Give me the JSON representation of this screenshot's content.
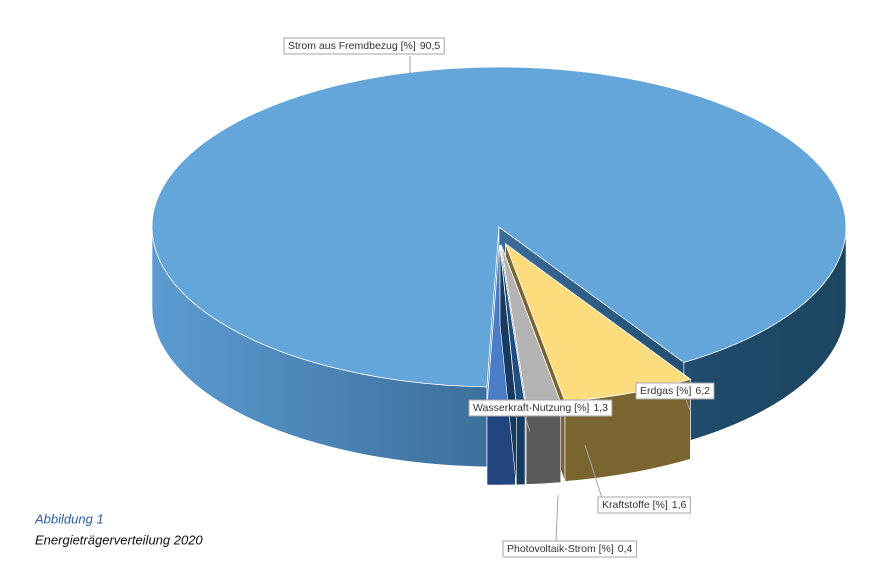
{
  "chart_data": {
    "type": "pie3d",
    "categories": [
      "Strom aus Fremdbezug [%]",
      "Erdgas [%]",
      "Kraftstoffe [%]",
      "Photovoltaik-Strom [%]",
      "Wasserkraft-Nutzung [%]"
    ],
    "values": [
      90.5,
      6.2,
      1.6,
      0.4,
      1.3
    ],
    "value_labels": [
      "90,5",
      "6,2",
      "1,6",
      "0,4",
      "1,3"
    ],
    "colors": [
      "#64a6d9",
      "#fddc7d",
      "#b3b3b3",
      "#1f4f80",
      "#4a7cc7"
    ],
    "caption": {
      "figure": "Abbildung 1",
      "title": "Energieträgerverteilung 2020"
    }
  }
}
